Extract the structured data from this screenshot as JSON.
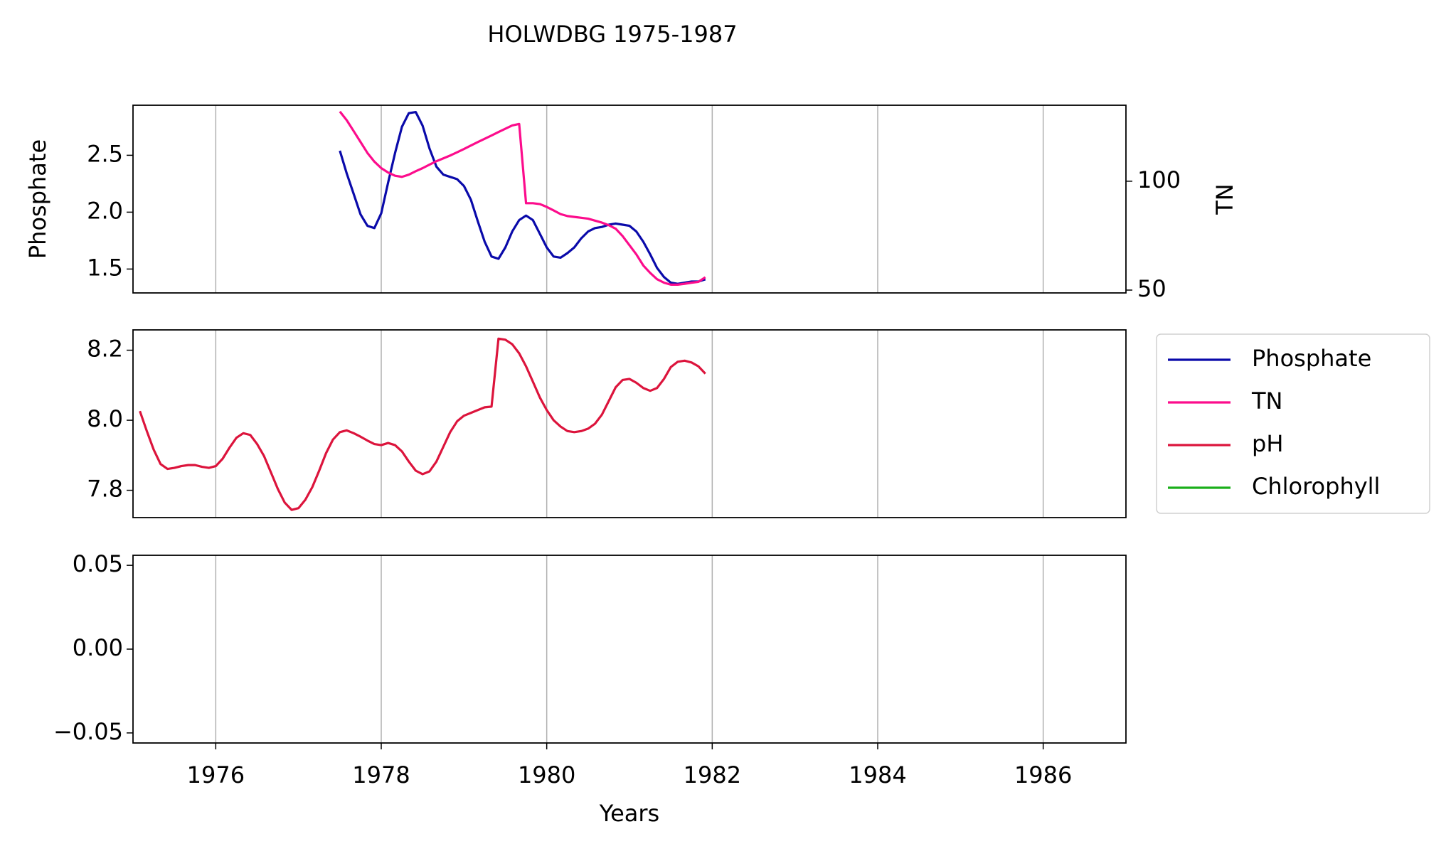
{
  "chart_data": [
    {
      "type": "line",
      "title": "HOLWDBG 1975-1987",
      "ylabel": "Phosphate",
      "y2label": "TN",
      "xlim": [
        1975,
        1987
      ],
      "xticks": [
        1976,
        1978,
        1980,
        1982,
        1984,
        1986
      ],
      "ylim": [
        1.29,
        2.94
      ],
      "yticks": [
        1.5,
        {
          "value": 2,
          "label": "2.0"
        },
        2.5
      ],
      "y2lim": [
        48.7,
        134.9
      ],
      "y2ticks": [
        50,
        100
      ],
      "grid": "x",
      "series": [
        {
          "name": "Phosphate",
          "color": "#0a0aaa",
          "axis": "y",
          "x": [
            1977.5,
            1977.583,
            1977.667,
            1977.75,
            1977.833,
            1977.917,
            1978.0,
            1978.083,
            1978.167,
            1978.25,
            1978.333,
            1978.417,
            1978.5,
            1978.583,
            1978.667,
            1978.75,
            1978.833,
            1978.917,
            1979.0,
            1979.083,
            1979.167,
            1979.25,
            1979.333,
            1979.417,
            1979.5,
            1979.583,
            1979.667,
            1979.75,
            1979.833,
            1979.917,
            1980.0,
            1980.083,
            1980.167,
            1980.25,
            1980.333,
            1980.417,
            1980.5,
            1980.583,
            1980.667,
            1980.75,
            1980.833,
            1980.917,
            1981.0,
            1981.083,
            1981.167,
            1981.25,
            1981.333,
            1981.417,
            1981.5,
            1981.583,
            1981.667,
            1981.75,
            1981.833,
            1981.917
          ],
          "values": [
            2.54,
            2.34,
            2.16,
            1.98,
            1.88,
            1.86,
            1.99,
            2.26,
            2.52,
            2.75,
            2.87,
            2.88,
            2.76,
            2.56,
            2.4,
            2.33,
            2.31,
            2.29,
            2.23,
            2.11,
            1.92,
            1.74,
            1.61,
            1.59,
            1.69,
            1.83,
            1.93,
            1.97,
            1.93,
            1.81,
            1.69,
            1.61,
            1.6,
            1.64,
            1.69,
            1.77,
            1.83,
            1.86,
            1.87,
            1.89,
            1.9,
            1.89,
            1.88,
            1.83,
            1.74,
            1.63,
            1.51,
            1.43,
            1.38,
            1.37,
            1.38,
            1.39,
            1.39,
            1.41
          ]
        },
        {
          "name": "TN",
          "color": "#fc0c8c",
          "axis": "y2",
          "x": [
            1977.5,
            1977.583,
            1977.667,
            1977.75,
            1977.833,
            1977.917,
            1978.0,
            1978.083,
            1978.167,
            1978.25,
            1978.333,
            1978.417,
            1978.5,
            1978.583,
            1978.667,
            1978.75,
            1978.833,
            1978.917,
            1979.0,
            1979.083,
            1979.167,
            1979.25,
            1979.333,
            1979.417,
            1979.5,
            1979.583,
            1979.667,
            1979.75,
            1979.833,
            1979.917,
            1980.0,
            1980.083,
            1980.167,
            1980.25,
            1980.333,
            1980.417,
            1980.5,
            1980.583,
            1980.667,
            1980.75,
            1980.833,
            1980.917,
            1981.0,
            1981.083,
            1981.167,
            1981.25,
            1981.333,
            1981.417,
            1981.5,
            1981.583,
            1981.667,
            1981.75,
            1981.833,
            1981.917
          ],
          "values": [
            132,
            128,
            123,
            118,
            113,
            109,
            106,
            104,
            102.5,
            102,
            103,
            104.6,
            106,
            107.6,
            109.2,
            110.5,
            111.8,
            113.3,
            114.8,
            116.4,
            118,
            119.5,
            121,
            122.6,
            124.1,
            125.6,
            126.3,
            89.9,
            89.9,
            89.5,
            88.2,
            86.6,
            84.9,
            84,
            83.6,
            83.2,
            82.8,
            81.9,
            81,
            79.8,
            78.2,
            74.8,
            70.6,
            66.4,
            61.3,
            57.9,
            55,
            53.4,
            52.5,
            52.5,
            52.9,
            53.4,
            53.8,
            55.9
          ]
        }
      ]
    },
    {
      "type": "line",
      "legend": "right",
      "xlim": [
        1975,
        1987
      ],
      "xticks": [
        1976,
        1978,
        1980,
        1982,
        1984,
        1986
      ],
      "ylim": [
        7.722,
        8.258
      ],
      "yticks": [
        7.8,
        {
          "value": 8,
          "label": "8.0"
        },
        8.2
      ],
      "grid": "x",
      "series": [
        {
          "name": "pH",
          "color": "#dc143c",
          "axis": "y",
          "x": [
            1975.083,
            1975.167,
            1975.25,
            1975.333,
            1975.417,
            1975.5,
            1975.583,
            1975.667,
            1975.75,
            1975.833,
            1975.917,
            1976.0,
            1976.083,
            1976.167,
            1976.25,
            1976.333,
            1976.417,
            1976.5,
            1976.583,
            1976.667,
            1976.75,
            1976.833,
            1976.917,
            1977.0,
            1977.083,
            1977.167,
            1977.25,
            1977.333,
            1977.417,
            1977.5,
            1977.583,
            1977.667,
            1977.75,
            1977.833,
            1977.917,
            1978.0,
            1978.083,
            1978.167,
            1978.25,
            1978.333,
            1978.417,
            1978.5,
            1978.583,
            1978.667,
            1978.75,
            1978.833,
            1978.917,
            1979.0,
            1979.083,
            1979.167,
            1979.25,
            1979.333,
            1979.417,
            1979.5,
            1979.583,
            1979.667,
            1979.75,
            1979.833,
            1979.917,
            1980.0,
            1980.083,
            1980.167,
            1980.25,
            1980.333,
            1980.417,
            1980.5,
            1980.583,
            1980.667,
            1980.75,
            1980.833,
            1980.917,
            1981.0,
            1981.083,
            1981.167,
            1981.25,
            1981.333,
            1981.417,
            1981.5,
            1981.583,
            1981.667,
            1981.75,
            1981.833,
            1981.917
          ],
          "values": [
            8.026,
            7.969,
            7.916,
            7.875,
            7.861,
            7.864,
            7.869,
            7.872,
            7.872,
            7.867,
            7.864,
            7.869,
            7.89,
            7.922,
            7.95,
            7.963,
            7.958,
            7.932,
            7.898,
            7.851,
            7.804,
            7.765,
            7.744,
            7.749,
            7.773,
            7.809,
            7.856,
            7.906,
            7.945,
            7.966,
            7.971,
            7.963,
            7.953,
            7.942,
            7.932,
            7.929,
            7.935,
            7.929,
            7.911,
            7.882,
            7.856,
            7.846,
            7.854,
            7.882,
            7.924,
            7.966,
            7.997,
            8.013,
            8.021,
            8.029,
            8.037,
            8.039,
            8.233,
            8.23,
            8.217,
            8.191,
            8.154,
            8.11,
            8.065,
            8.029,
            8.0,
            7.982,
            7.969,
            7.966,
            7.969,
            7.976,
            7.99,
            8.016,
            8.055,
            8.094,
            8.115,
            8.118,
            8.107,
            8.092,
            8.084,
            8.092,
            8.118,
            8.152,
            8.167,
            8.17,
            8.165,
            8.154,
            8.133
          ]
        }
      ]
    },
    {
      "type": "line",
      "xlabel": "Years",
      "xlim": [
        1975,
        1987
      ],
      "xticks": [
        1976,
        1978,
        1980,
        1982,
        1984,
        1986
      ],
      "ylim": [
        -0.056,
        0.056
      ],
      "yticks": [
        {
          "value": -0.05,
          "label": "−0.05"
        },
        {
          "value": 0,
          "label": "0.00"
        },
        0.05
      ],
      "grid": "x",
      "series": [
        {
          "name": "Chlorophyll",
          "color": "#1aaf1a",
          "axis": "y",
          "x": [],
          "values": []
        }
      ]
    }
  ]
}
